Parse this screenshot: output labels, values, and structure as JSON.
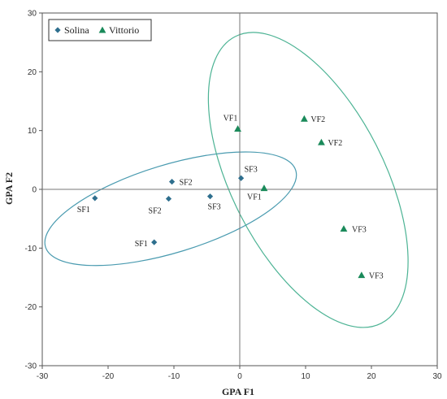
{
  "chart_data": {
    "type": "scatter",
    "xlabel": "GPA F1",
    "ylabel": "GPA F2",
    "xlim": [
      -30,
      30
    ],
    "ylim": [
      -30,
      30
    ],
    "x_ticks": [
      -30,
      -20,
      -10,
      0,
      10,
      20,
      30
    ],
    "y_ticks": [
      -30,
      -20,
      -10,
      0,
      10,
      20,
      30
    ],
    "grid": false,
    "legend_position": "top-left",
    "series": [
      {
        "name": "Solina",
        "marker": "diamond",
        "color": "#2e6f8e",
        "points": [
          {
            "x": -22,
            "y": -1.5,
            "label": "SF1"
          },
          {
            "x": -13,
            "y": -9,
            "label": "SF1"
          },
          {
            "x": -10.3,
            "y": 1.3,
            "label": "SF2"
          },
          {
            "x": -10.8,
            "y": -1.6,
            "label": "SF2"
          },
          {
            "x": -4.5,
            "y": -1.2,
            "label": "SF3"
          },
          {
            "x": 0.2,
            "y": 1.9,
            "label": "SF3"
          }
        ]
      },
      {
        "name": "Vittorio",
        "marker": "triangle",
        "color": "#1a8a5a",
        "points": [
          {
            "x": -0.3,
            "y": 10.3,
            "label": "VF1"
          },
          {
            "x": 3.7,
            "y": 0.2,
            "label": "VF1"
          },
          {
            "x": 9.8,
            "y": 12,
            "label": "VF2"
          },
          {
            "x": 12.4,
            "y": 8,
            "label": "VF2"
          },
          {
            "x": 15.8,
            "y": -6.7,
            "label": "VF3"
          },
          {
            "x": 18.5,
            "y": -14.6,
            "label": "VF3"
          }
        ]
      }
    ],
    "ellipses": [
      {
        "group": "Solina",
        "color": "#4a9bb0"
      },
      {
        "group": "Vittorio",
        "color": "#4cb394"
      }
    ]
  }
}
